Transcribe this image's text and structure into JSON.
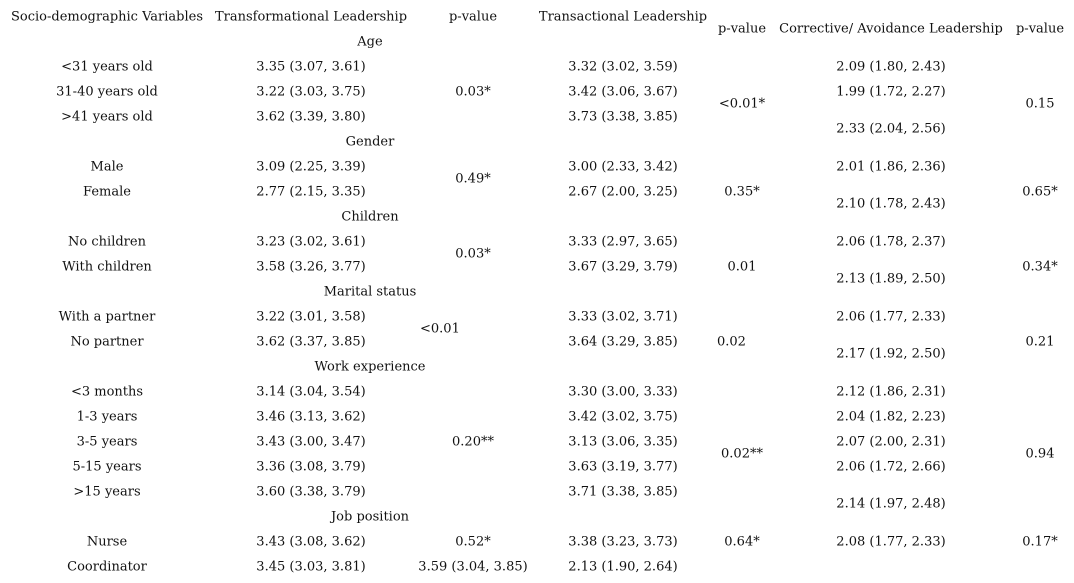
{
  "headers": {
    "variables": "Socio-demographic Variables",
    "transformational": "Transformational Leadership",
    "p1": "p-value",
    "transactional": "Transactional Leadership",
    "p2": "p-value",
    "corrective": "Corrective/ Avoidance Leadership",
    "p3": "p-value"
  },
  "groups": {
    "age": {
      "label": "Age",
      "rows": [
        [
          "<31 years old",
          "3.35 (3.07, 3.61)",
          "3.32 (3.02, 3.59)",
          "2.09 (1.80, 2.43)"
        ],
        [
          "31-40 years old",
          "3.22 (3.03, 3.75)",
          "3.42 (3.06, 3.67)",
          "1.99 (1.72, 2.27)"
        ],
        [
          ">41 years old",
          "3.62 (3.39, 3.80)",
          "3.73 (3.38, 3.85)",
          "2.33 (2.04, 2.56)"
        ]
      ],
      "p": [
        "0.03*",
        "<0.01*",
        "0.15"
      ]
    },
    "gender": {
      "label": "Gender",
      "rows": [
        [
          "Male",
          "3.09 (2.25, 3.39)",
          "3.00 (2.33, 3.42)",
          "2.01 (1.86, 2.36)"
        ],
        [
          "Female",
          "2.77 (2.15, 3.35)",
          "2.67 (2.00, 3.25)",
          "2.10 (1.78, 2.43)"
        ]
      ],
      "p": [
        "0.49*",
        "0.35*",
        "0.65*"
      ]
    },
    "children": {
      "label": "Children",
      "rows": [
        [
          "No children",
          "3.23 (3.02, 3.61)",
          "3.33 (2.97, 3.65)",
          "2.06 (1.78, 2.37)"
        ],
        [
          "With children",
          "3.58 (3.26, 3.77)",
          "3.67 (3.29, 3.79)",
          "2.13 (1.89, 2.50)"
        ]
      ],
      "p": [
        "0.03*",
        "0.01",
        "0.34*"
      ]
    },
    "marital": {
      "label": "Marital status",
      "rows": [
        [
          "With a partner",
          "3.22 (3.01, 3.58)",
          "3.33 (3.02, 3.71)",
          "2.06 (1.77, 2.33)"
        ],
        [
          "No partner",
          "3.62 (3.37, 3.85)",
          "3.64 (3.29, 3.85)",
          "2.17 (1.92, 2.50)"
        ]
      ],
      "p": [
        "<0.01",
        "0.02",
        "0.21"
      ]
    },
    "work": {
      "label": "Work experience",
      "rows": [
        [
          "<3 months",
          "3.14 (3.04, 3.54)",
          "3.30 (3.00, 3.33)",
          "2.12 (1.86, 2.31)"
        ],
        [
          "1-3 years",
          "3.46 (3.13, 3.62)",
          "3.42 (3.02, 3.75)",
          "2.04 (1.82, 2.23)"
        ],
        [
          "3-5 years",
          "3.43 (3.00, 3.47)",
          "3.13 (3.06, 3.35)",
          "2.07 (2.00, 2.31)"
        ],
        [
          "5-15 years",
          "3.36 (3.08, 3.79)",
          "3.63 (3.19, 3.77)",
          "2.06 (1.72, 2.66)"
        ],
        [
          ">15 years",
          "3.60 (3.38, 3.79)",
          "3.71 (3.38, 3.85)",
          "2.14 (1.97, 2.48)"
        ]
      ],
      "p": [
        "0.20**",
        "0.02**",
        "0.94"
      ]
    },
    "job": {
      "label": "Job position",
      "rows": [
        [
          "Nurse",
          "3.43 (3.08, 3.62)",
          "3.38 (3.23, 3.73)",
          "2.08 (1.77, 2.33)"
        ],
        [
          "Coordinator",
          "3.45 (3.03, 3.81)",
          "3.59 (3.04, 3.85)",
          "2.13 (1.90, 2.64)"
        ]
      ],
      "p": [
        "0.52*",
        "0.64*",
        "0.17*"
      ]
    }
  }
}
